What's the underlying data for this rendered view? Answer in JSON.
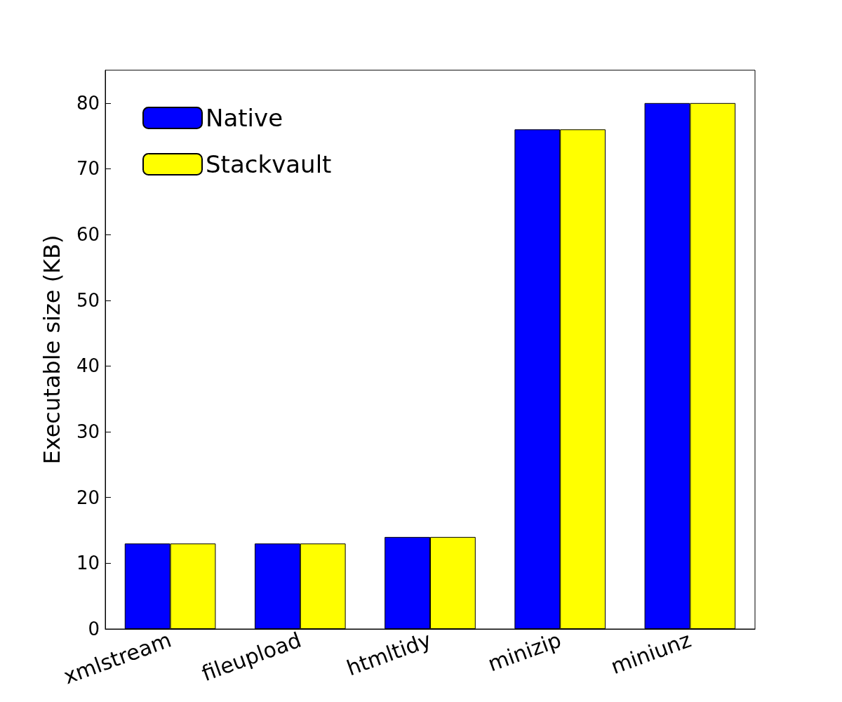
{
  "chart_data": {
    "type": "bar",
    "ylabel": "Executable size (KB)",
    "categories": [
      "xmlstream",
      "fileupload",
      "htmltidy",
      "minizip",
      "miniunz"
    ],
    "series": [
      {
        "name": "Native",
        "color": "#0000ff",
        "values": [
          13,
          13,
          14,
          76,
          80
        ]
      },
      {
        "name": "Stackvault",
        "color": "#ffff00",
        "values": [
          13,
          13,
          14,
          76,
          80
        ]
      }
    ],
    "ylim": [
      0,
      85
    ],
    "yticks": [
      0,
      10,
      20,
      30,
      40,
      50,
      60,
      70,
      80
    ],
    "grid": false,
    "legend": "top left"
  }
}
